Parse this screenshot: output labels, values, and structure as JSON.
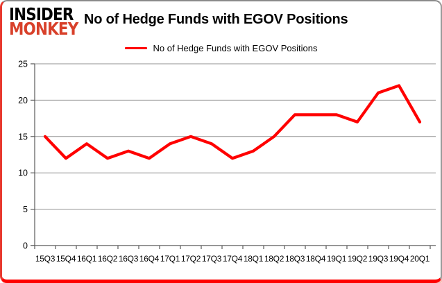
{
  "logo": {
    "line1": "INSIDER",
    "line2": "MONKEY"
  },
  "header": {
    "title": "No of Hedge Funds with EGOV Positions"
  },
  "legend": {
    "label": "No of Hedge Funds with EGOV Positions"
  },
  "colors": {
    "series_line": "#ff0000",
    "logo_black": "#000000",
    "logo_red": "#d8402a",
    "gridline": "#909090",
    "axis": "#595959",
    "label_text": "#000000",
    "frame_red": "#ff0000",
    "frame_gray": "#8a8a8a",
    "background": "#ffffff"
  },
  "chart_data": {
    "type": "line",
    "title": "No of Hedge Funds with EGOV Positions",
    "categories": [
      "15Q3",
      "15Q4",
      "16Q1",
      "16Q2",
      "16Q3",
      "16Q4",
      "17Q1",
      "17Q2",
      "17Q3",
      "17Q4",
      "18Q1",
      "18Q2",
      "18Q3",
      "18Q4",
      "19Q1",
      "19Q2",
      "19Q3",
      "19Q4",
      "20Q1"
    ],
    "series": [
      {
        "name": "No of Hedge Funds with EGOV Positions",
        "values": [
          15,
          12,
          14,
          12,
          13,
          12,
          14,
          15,
          14,
          12,
          13,
          15,
          18,
          18,
          18,
          17,
          21,
          22,
          17
        ]
      }
    ],
    "xlabel": "",
    "ylabel": "",
    "ylim": [
      0,
      25
    ],
    "yticks": [
      0,
      5,
      10,
      15,
      20,
      25
    ],
    "grid": "horizontal",
    "legend_position": "top-center"
  }
}
